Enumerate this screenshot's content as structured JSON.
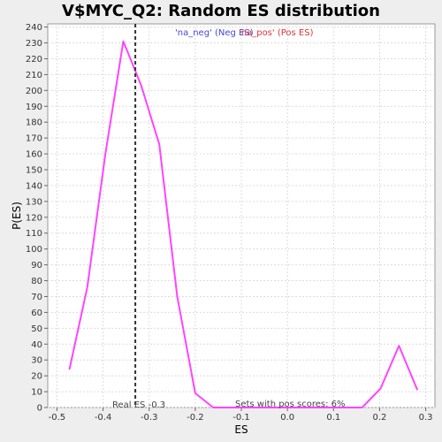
{
  "chart_data": {
    "type": "line",
    "title": "V$MYC_Q2: Random ES distribution",
    "xlabel": "ES",
    "ylabel": "P(ES)",
    "xlim": [
      -0.52,
      0.32
    ],
    "ylim": [
      0,
      242
    ],
    "xticks": [
      -0.5,
      -0.4,
      -0.3,
      -0.2,
      -0.1,
      0.0,
      0.1,
      0.2,
      0.3
    ],
    "xtick_labels": [
      "-0.5",
      "-0.4",
      "-0.3",
      "-0.2",
      "-0.1",
      "0.0",
      "0.1",
      "0.2",
      "0.3"
    ],
    "yticks": [
      0,
      10,
      20,
      30,
      40,
      50,
      60,
      70,
      80,
      90,
      100,
      110,
      120,
      130,
      140,
      150,
      160,
      170,
      180,
      190,
      200,
      210,
      220,
      230,
      240
    ],
    "grid": true,
    "series": [
      {
        "color": "#ff44ff",
        "x": [
          -0.473,
          -0.434,
          -0.395,
          -0.356,
          -0.317,
          -0.278,
          -0.239,
          -0.2,
          -0.161,
          -0.122,
          -0.083,
          -0.044,
          -0.005,
          0.034,
          0.073,
          0.112,
          0.162,
          0.202,
          0.242,
          0.282
        ],
        "y": [
          24,
          76,
          160,
          231,
          203,
          166,
          70,
          9,
          0,
          0,
          0,
          0,
          0,
          0,
          0,
          0,
          0,
          12,
          39,
          11
        ]
      }
    ],
    "vline": {
      "x": -0.33,
      "color": "#333333",
      "style": "dashed"
    },
    "annotations": {
      "real_es": "Real ES -0.3",
      "pos_scores": "Sets with pos scores: 6%"
    },
    "legend": {
      "placement": "top-center",
      "neg": {
        "label": "'na_neg' (Neg ES)",
        "color": "#4444dd"
      },
      "pos": {
        "label": "'na_pos' (Pos ES)",
        "color": "#dd3333"
      }
    }
  }
}
